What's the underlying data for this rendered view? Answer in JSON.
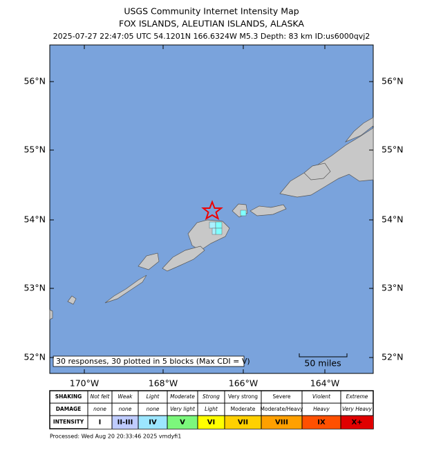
{
  "header": {
    "title": "USGS Community Internet Intensity Map",
    "subtitle": "FOX ISLANDS, ALEUTIAN ISLANDS, ALASKA",
    "event": "2025-07-27 22:47:05 UTC 54.1201N 166.6324W M5.3 Depth: 83 km ID:us6000qvj2"
  },
  "map": {
    "lat_labels": [
      "56°N",
      "55°N",
      "54°N",
      "53°N",
      "52°N"
    ],
    "lon_labels": [
      "170°W",
      "168°W",
      "166°W",
      "164°W"
    ],
    "note": "30 responses, 30 plotted in 5 blocks (Max CDI = V)",
    "scale_label": "50 miles"
  },
  "legend": {
    "rows": [
      {
        "label": "SHAKING",
        "cells": [
          "Not felt",
          "Weak",
          "Light",
          "Moderate",
          "Strong",
          "Very strong",
          "Severe",
          "Violent",
          "Extreme"
        ]
      },
      {
        "label": "DAMAGE",
        "cells": [
          "none",
          "none",
          "none",
          "Very light",
          "Light",
          "Moderate",
          "Moderate/Heavy",
          "Heavy",
          "Very Heavy"
        ]
      },
      {
        "label": "INTENSITY",
        "cells": [
          "I",
          "II-III",
          "IV",
          "V",
          "VI",
          "VII",
          "VIII",
          "IX",
          "X+"
        ]
      }
    ]
  },
  "footer": "Processed: Wed Aug 20 20:33:46 2025 vmdyfi1"
}
